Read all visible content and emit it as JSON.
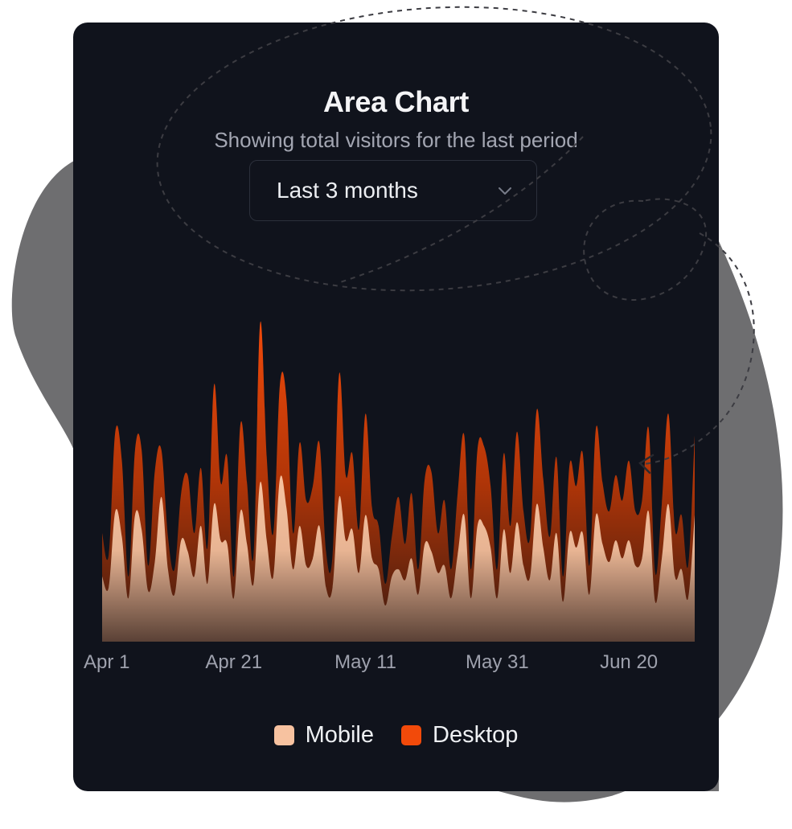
{
  "title": "Area Chart",
  "subtitle": "Showing total visitors for the last period",
  "range_select": {
    "value": "Last 3 months",
    "icon": "chevron-down-icon"
  },
  "colors": {
    "mobile": "#f7c2a0",
    "desktop": "#f24a0a",
    "card": "#10131c",
    "blob": "#6e6e70"
  },
  "chart_data": {
    "type": "area",
    "stacked": true,
    "title": "Area Chart",
    "subtitle": "Showing total visitors for the last period",
    "xlabel": "",
    "ylabel": "",
    "x_tick_labels": [
      "Apr 1",
      "Apr 21",
      "May 11",
      "May 31",
      "Jun 20"
    ],
    "grid": false,
    "legend_position": "bottom",
    "ylim": [
      0,
      1000
    ],
    "x": [
      "Apr 1",
      "Apr 2",
      "Apr 3",
      "Apr 4",
      "Apr 5",
      "Apr 6",
      "Apr 7",
      "Apr 8",
      "Apr 9",
      "Apr 10",
      "Apr 11",
      "Apr 12",
      "Apr 13",
      "Apr 14",
      "Apr 15",
      "Apr 16",
      "Apr 17",
      "Apr 18",
      "Apr 19",
      "Apr 20",
      "Apr 21",
      "Apr 22",
      "Apr 23",
      "Apr 24",
      "Apr 25",
      "Apr 26",
      "Apr 27",
      "Apr 28",
      "Apr 29",
      "Apr 30",
      "May 1",
      "May 2",
      "May 3",
      "May 4",
      "May 5",
      "May 6",
      "May 7",
      "May 8",
      "May 9",
      "May 10",
      "May 11",
      "May 12",
      "May 13",
      "May 14",
      "May 15",
      "May 16",
      "May 17",
      "May 18",
      "May 19",
      "May 20",
      "May 21",
      "May 22",
      "May 23",
      "May 24",
      "May 25",
      "May 26",
      "May 27",
      "May 28",
      "May 29",
      "May 30",
      "May 31",
      "Jun 1",
      "Jun 2",
      "Jun 3",
      "Jun 4",
      "Jun 5",
      "Jun 6",
      "Jun 7",
      "Jun 8",
      "Jun 9",
      "Jun 10",
      "Jun 11",
      "Jun 12",
      "Jun 13",
      "Jun 14",
      "Jun 15",
      "Jun 16",
      "Jun 17",
      "Jun 18",
      "Jun 19",
      "Jun 20",
      "Jun 21",
      "Jun 22",
      "Jun 23",
      "Jun 24",
      "Jun 25",
      "Jun 26",
      "Jun 27",
      "Jun 28",
      "Jun 29",
      "Jun 30"
    ],
    "series": [
      {
        "name": "Mobile",
        "color": "#f7c2a0",
        "values": [
          180,
          150,
          360,
          290,
          120,
          350,
          310,
          140,
          220,
          400,
          200,
          130,
          280,
          250,
          180,
          320,
          160,
          380,
          280,
          270,
          120,
          360,
          270,
          160,
          440,
          280,
          180,
          450,
          370,
          200,
          320,
          210,
          230,
          320,
          150,
          150,
          400,
          280,
          310,
          190,
          350,
          230,
          200,
          100,
          180,
          200,
          170,
          230,
          130,
          270,
          250,
          190,
          210,
          120,
          240,
          350,
          120,
          320,
          320,
          260,
          120,
          310,
          190,
          330,
          210,
          180,
          380,
          260,
          170,
          300,
          110,
          300,
          260,
          300,
          130,
          350,
          270,
          220,
          280,
          230,
          280,
          210,
          230,
          360,
          110,
          230,
          380,
          180,
          200,
          120,
          350
        ]
      },
      {
        "name": "Desktop",
        "color": "#f24a0a",
        "values": [
          120,
          90,
          220,
          210,
          60,
          180,
          220,
          70,
          250,
          130,
          90,
          70,
          130,
          210,
          120,
          160,
          100,
          330,
          160,
          240,
          60,
          240,
          170,
          80,
          440,
          230,
          120,
          260,
          300,
          100,
          230,
          180,
          200,
          230,
          100,
          90,
          340,
          180,
          210,
          120,
          280,
          140,
          120,
          60,
          110,
          200,
          100,
          180,
          70,
          180,
          220,
          110,
          180,
          80,
          170,
          220,
          80,
          210,
          220,
          170,
          80,
          210,
          130,
          250,
          150,
          110,
          260,
          190,
          120,
          210,
          70,
          190,
          170,
          220,
          80,
          240,
          170,
          140,
          180,
          160,
          220,
          150,
          160,
          230,
          80,
          150,
          250,
          130,
          150,
          90,
          220
        ]
      }
    ]
  }
}
